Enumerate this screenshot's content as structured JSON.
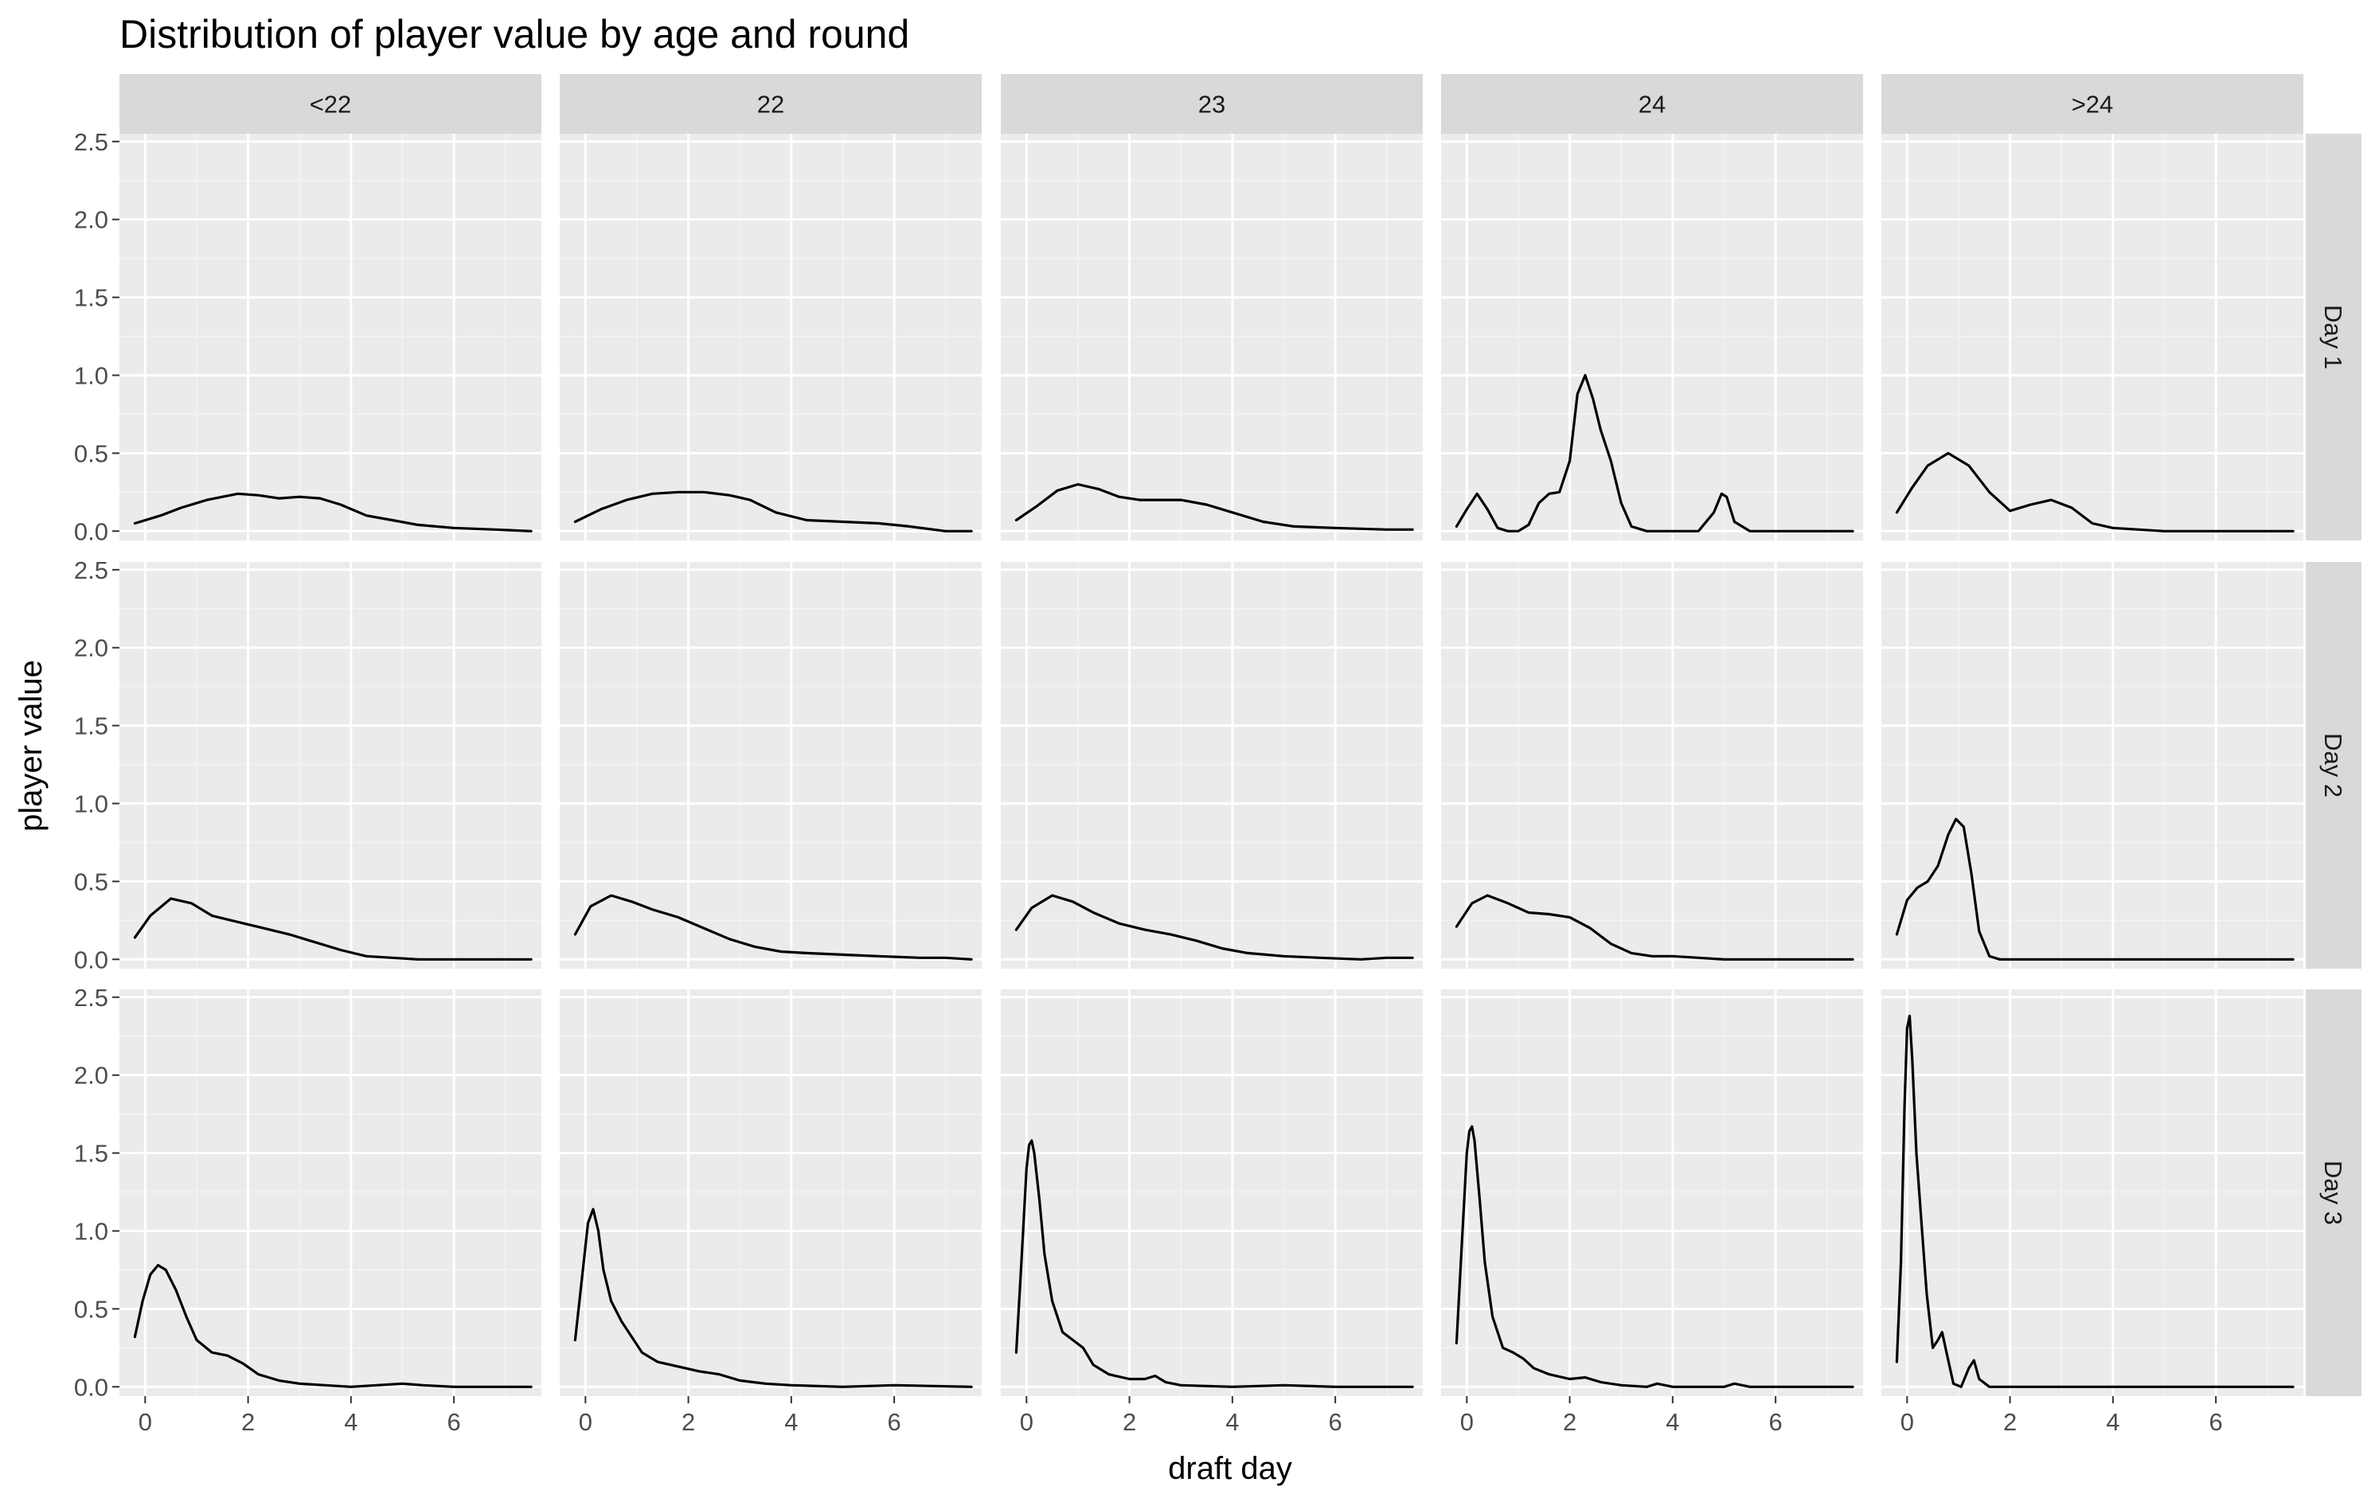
{
  "chart_data": {
    "type": "line",
    "title": "Distribution of player value by age and round",
    "xlabel": "draft day",
    "ylabel": "player value",
    "xlim": [
      -0.5,
      7.7
    ],
    "ylim": [
      -0.06,
      2.55
    ],
    "x_ticks": [
      0,
      2,
      4,
      6
    ],
    "x_tick_labels": [
      "0",
      "2",
      "4",
      "6"
    ],
    "y_ticks": [
      0,
      0.5,
      1,
      1.5,
      2,
      2.5
    ],
    "y_tick_labels": [
      "0.0",
      "0.5",
      "1.0",
      "1.5",
      "2.0",
      "2.5"
    ],
    "grid": true,
    "columns": [
      "<22",
      "22",
      "23",
      "24",
      ">24"
    ],
    "rows": [
      "Day 1",
      "Day 2",
      "Day 3"
    ],
    "line_color": "#000000",
    "panel_background": "#ebebeb",
    "strip_background": "#d9d9d9",
    "panels": [
      {
        "row": 0,
        "col": 0,
        "x": [
          -0.2,
          0.3,
          0.7,
          1.2,
          1.8,
          2.2,
          2.6,
          3.0,
          3.4,
          3.8,
          4.3,
          4.8,
          5.3,
          6.0,
          6.8,
          7.5
        ],
        "y": [
          0.05,
          0.1,
          0.15,
          0.2,
          0.24,
          0.23,
          0.21,
          0.22,
          0.21,
          0.17,
          0.1,
          0.07,
          0.04,
          0.02,
          0.01,
          0.0
        ]
      },
      {
        "row": 0,
        "col": 1,
        "x": [
          -0.2,
          0.3,
          0.8,
          1.3,
          1.8,
          2.3,
          2.8,
          3.2,
          3.7,
          4.3,
          5.0,
          5.7,
          6.3,
          7.0,
          7.5
        ],
        "y": [
          0.06,
          0.14,
          0.2,
          0.24,
          0.25,
          0.25,
          0.23,
          0.2,
          0.12,
          0.07,
          0.06,
          0.05,
          0.03,
          0.0,
          0.0
        ]
      },
      {
        "row": 0,
        "col": 2,
        "x": [
          -0.2,
          0.2,
          0.6,
          1.0,
          1.4,
          1.8,
          2.2,
          2.6,
          3.0,
          3.5,
          4.0,
          4.6,
          5.2,
          6.0,
          7.0,
          7.5
        ],
        "y": [
          0.07,
          0.16,
          0.26,
          0.3,
          0.27,
          0.22,
          0.2,
          0.2,
          0.2,
          0.17,
          0.12,
          0.06,
          0.03,
          0.02,
          0.01,
          0.01
        ]
      },
      {
        "row": 0,
        "col": 3,
        "x": [
          -0.2,
          0.0,
          0.2,
          0.4,
          0.6,
          0.8,
          1.0,
          1.2,
          1.4,
          1.6,
          1.8,
          2.0,
          2.15,
          2.3,
          2.45,
          2.6,
          2.8,
          3.0,
          3.2,
          3.5,
          4.0,
          4.5,
          4.8,
          4.95,
          5.05,
          5.2,
          5.5,
          6.0,
          7.0,
          7.5
        ],
        "y": [
          0.03,
          0.14,
          0.24,
          0.14,
          0.02,
          0.0,
          0.0,
          0.04,
          0.18,
          0.24,
          0.25,
          0.45,
          0.88,
          1.0,
          0.85,
          0.65,
          0.45,
          0.18,
          0.03,
          0.0,
          0.0,
          0.0,
          0.12,
          0.24,
          0.22,
          0.06,
          0.0,
          0.0,
          0.0,
          0.0
        ]
      },
      {
        "row": 0,
        "col": 4,
        "x": [
          -0.2,
          0.1,
          0.4,
          0.8,
          1.2,
          1.6,
          2.0,
          2.4,
          2.8,
          3.2,
          3.6,
          4.0,
          4.5,
          5.0,
          6.0,
          7.5
        ],
        "y": [
          0.12,
          0.28,
          0.42,
          0.5,
          0.42,
          0.25,
          0.13,
          0.17,
          0.2,
          0.15,
          0.05,
          0.02,
          0.01,
          0.0,
          0.0,
          0.0
        ]
      },
      {
        "row": 1,
        "col": 0,
        "x": [
          -0.2,
          0.1,
          0.5,
          0.9,
          1.3,
          1.8,
          2.3,
          2.8,
          3.3,
          3.8,
          4.3,
          4.8,
          5.3,
          6.0,
          7.0,
          7.5
        ],
        "y": [
          0.14,
          0.28,
          0.39,
          0.36,
          0.28,
          0.24,
          0.2,
          0.16,
          0.11,
          0.06,
          0.02,
          0.01,
          0.0,
          0.0,
          0.0,
          0.0
        ]
      },
      {
        "row": 1,
        "col": 1,
        "x": [
          -0.2,
          0.1,
          0.5,
          0.9,
          1.3,
          1.8,
          2.3,
          2.8,
          3.3,
          3.8,
          4.3,
          5.0,
          5.7,
          6.5,
          7.0,
          7.5
        ],
        "y": [
          0.16,
          0.34,
          0.41,
          0.37,
          0.32,
          0.27,
          0.2,
          0.13,
          0.08,
          0.05,
          0.04,
          0.03,
          0.02,
          0.01,
          0.01,
          0.0
        ]
      },
      {
        "row": 1,
        "col": 2,
        "x": [
          -0.2,
          0.1,
          0.5,
          0.9,
          1.3,
          1.8,
          2.3,
          2.8,
          3.3,
          3.8,
          4.3,
          5.0,
          5.7,
          6.5,
          7.0,
          7.5
        ],
        "y": [
          0.19,
          0.33,
          0.41,
          0.37,
          0.3,
          0.23,
          0.19,
          0.16,
          0.12,
          0.07,
          0.04,
          0.02,
          0.01,
          0.0,
          0.01,
          0.01
        ]
      },
      {
        "row": 1,
        "col": 3,
        "x": [
          -0.2,
          0.1,
          0.4,
          0.8,
          1.2,
          1.6,
          2.0,
          2.4,
          2.8,
          3.2,
          3.6,
          4.0,
          4.5,
          5.0,
          6.0,
          7.5
        ],
        "y": [
          0.21,
          0.36,
          0.41,
          0.36,
          0.3,
          0.29,
          0.27,
          0.2,
          0.1,
          0.04,
          0.02,
          0.02,
          0.01,
          0.0,
          0.0,
          0.0
        ]
      },
      {
        "row": 1,
        "col": 4,
        "x": [
          -0.2,
          0.0,
          0.2,
          0.4,
          0.6,
          0.8,
          0.95,
          1.1,
          1.25,
          1.4,
          1.6,
          1.8,
          2.0,
          3.0,
          5.0,
          7.5
        ],
        "y": [
          0.16,
          0.38,
          0.46,
          0.5,
          0.6,
          0.8,
          0.9,
          0.85,
          0.55,
          0.18,
          0.02,
          0.0,
          0.0,
          0.0,
          0.0,
          0.0
        ]
      },
      {
        "row": 2,
        "col": 0,
        "x": [
          -0.2,
          -0.05,
          0.1,
          0.25,
          0.4,
          0.6,
          0.8,
          1.0,
          1.3,
          1.6,
          1.9,
          2.2,
          2.6,
          3.0,
          3.5,
          4.0,
          4.5,
          5.0,
          5.4,
          6.0,
          7.5
        ],
        "y": [
          0.32,
          0.55,
          0.72,
          0.78,
          0.75,
          0.62,
          0.45,
          0.3,
          0.22,
          0.2,
          0.15,
          0.08,
          0.04,
          0.02,
          0.01,
          0.0,
          0.01,
          0.02,
          0.01,
          0.0,
          0.0
        ]
      },
      {
        "row": 2,
        "col": 1,
        "x": [
          -0.2,
          -0.05,
          0.05,
          0.15,
          0.25,
          0.35,
          0.5,
          0.7,
          0.9,
          1.1,
          1.4,
          1.8,
          2.2,
          2.6,
          3.0,
          3.5,
          4.0,
          5.0,
          6.0,
          7.5
        ],
        "y": [
          0.3,
          0.75,
          1.05,
          1.14,
          1.0,
          0.75,
          0.55,
          0.42,
          0.32,
          0.22,
          0.16,
          0.13,
          0.1,
          0.08,
          0.04,
          0.02,
          0.01,
          0.0,
          0.01,
          0.0
        ]
      },
      {
        "row": 2,
        "col": 2,
        "x": [
          -0.2,
          -0.1,
          0.0,
          0.05,
          0.1,
          0.15,
          0.25,
          0.35,
          0.5,
          0.7,
          0.9,
          1.1,
          1.3,
          1.6,
          2.0,
          2.3,
          2.5,
          2.7,
          3.0,
          4.0,
          5.0,
          6.0,
          7.5
        ],
        "y": [
          0.22,
          0.8,
          1.4,
          1.55,
          1.58,
          1.5,
          1.2,
          0.85,
          0.55,
          0.35,
          0.3,
          0.25,
          0.14,
          0.08,
          0.05,
          0.05,
          0.07,
          0.03,
          0.01,
          0.0,
          0.01,
          0.0,
          0.0
        ]
      },
      {
        "row": 2,
        "col": 3,
        "x": [
          -0.2,
          -0.1,
          0.0,
          0.05,
          0.1,
          0.15,
          0.25,
          0.35,
          0.5,
          0.7,
          0.9,
          1.1,
          1.3,
          1.6,
          2.0,
          2.3,
          2.6,
          3.0,
          3.5,
          3.7,
          4.0,
          5.0,
          5.2,
          5.5,
          6.0,
          7.5
        ],
        "y": [
          0.28,
          0.9,
          1.5,
          1.64,
          1.67,
          1.58,
          1.2,
          0.8,
          0.45,
          0.25,
          0.22,
          0.18,
          0.12,
          0.08,
          0.05,
          0.06,
          0.03,
          0.01,
          0.0,
          0.02,
          0.0,
          0.0,
          0.02,
          0.0,
          0.0,
          0.0
        ]
      },
      {
        "row": 2,
        "col": 4,
        "x": [
          -0.2,
          -0.12,
          -0.05,
          0.0,
          0.05,
          0.1,
          0.18,
          0.28,
          0.38,
          0.5,
          0.6,
          0.68,
          0.78,
          0.9,
          1.05,
          1.2,
          1.3,
          1.4,
          1.6,
          2.0,
          3.0,
          5.0,
          7.5
        ],
        "y": [
          0.16,
          0.8,
          1.8,
          2.3,
          2.38,
          2.1,
          1.5,
          1.05,
          0.6,
          0.25,
          0.3,
          0.35,
          0.2,
          0.02,
          0.0,
          0.12,
          0.17,
          0.05,
          0.0,
          0.0,
          0.0,
          0.0,
          0.0
        ]
      }
    ]
  }
}
